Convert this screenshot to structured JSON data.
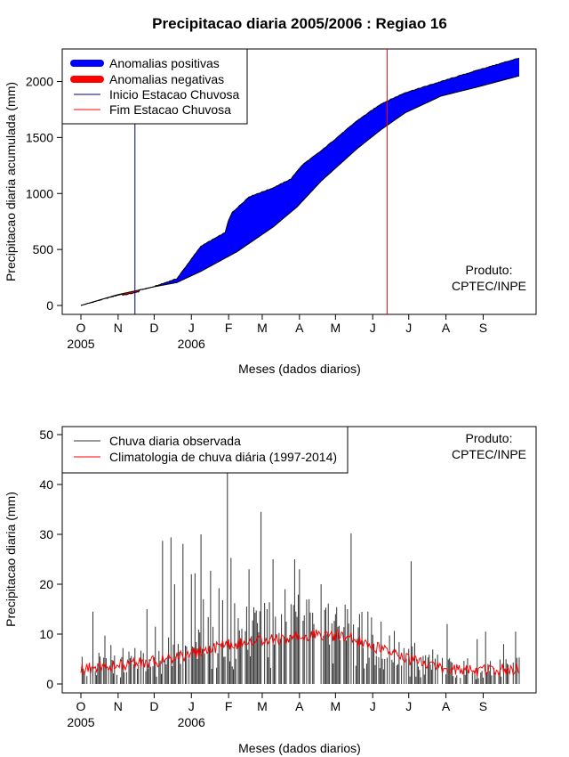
{
  "page": {
    "title": "Precipitacao diaria 2005/2006 : Regiao 16"
  },
  "chart_data": [
    {
      "type": "area",
      "title": "Precipitacao diaria 2005/2006 : Regiao 16",
      "xlabel": "Meses (dados diarios)",
      "ylabel": "Precipitacao diaria acumulada (mm)",
      "ylim": [
        0,
        2250
      ],
      "yticks": [
        0,
        500,
        1000,
        1500,
        2000
      ],
      "month_ticks": [
        "O",
        "N",
        "D",
        "J",
        "F",
        "M",
        "A",
        "M",
        "J",
        "J",
        "A",
        "S"
      ],
      "year_labels": [
        "2005",
        "2006"
      ],
      "x_days_range": [
        0,
        365
      ],
      "climatology_cumulative": {
        "x_day": [
          0,
          30,
          60,
          80,
          100,
          130,
          160,
          180,
          200,
          230,
          250,
          270,
          300,
          330,
          365
        ],
        "y_mm": [
          0,
          95,
          165,
          205,
          305,
          480,
          700,
          880,
          1110,
          1400,
          1570,
          1720,
          1870,
          1950,
          2050
        ]
      },
      "observed_cumulative": {
        "x_day": [
          0,
          30,
          60,
          80,
          100,
          110,
          120,
          123,
          126,
          130,
          140,
          160,
          175,
          180,
          185,
          200,
          230,
          250,
          270,
          300,
          330,
          365
        ],
        "y_mm": [
          0,
          90,
          165,
          240,
          530,
          590,
          650,
          760,
          830,
          870,
          970,
          1050,
          1130,
          1200,
          1260,
          1380,
          1650,
          1800,
          1900,
          2000,
          2100,
          2210
        ]
      },
      "vlines": {
        "inicio_day": 45,
        "fim_day": 255
      },
      "legend": {
        "position": "top-left",
        "entries": [
          "Anomalias positivas",
          "Anomalias negativas",
          "Inicio Estacao Chuvosa",
          "Fim Estacao Chuvosa"
        ]
      },
      "annotation": [
        "Produto:",
        "CPTEC/INPE"
      ],
      "colors": {
        "positive": "#0000ff",
        "negative": "#ff0000",
        "inicio": "#00008b",
        "fim": "#ff0000",
        "line": "#000000"
      }
    },
    {
      "type": "bar",
      "xlabel": "Meses (dados diarios)",
      "ylabel": "Precipitacao diaria (mm)",
      "ylim": [
        0,
        50
      ],
      "yticks": [
        0,
        10,
        20,
        30,
        40,
        50
      ],
      "month_ticks": [
        "O",
        "N",
        "D",
        "J",
        "F",
        "M",
        "A",
        "M",
        "J",
        "J",
        "A",
        "S"
      ],
      "year_labels": [
        "2005",
        "2006"
      ],
      "x_days_range": [
        0,
        365
      ],
      "observed_daily_peaks": {
        "x_day": [
          10,
          20,
          25,
          35,
          40,
          55,
          62,
          68,
          75,
          78,
          85,
          92,
          95,
          100,
          102,
          108,
          115,
          118,
          122,
          125,
          128,
          140,
          150,
          155,
          160,
          170,
          175,
          178,
          182,
          190,
          200,
          212,
          225,
          250,
          275,
          305,
          330,
          337,
          352,
          362
        ],
        "y_mm": [
          14.5,
          9.7,
          7.8,
          7.2,
          6.5,
          15.0,
          11.5,
          28.7,
          29.4,
          20.0,
          28.1,
          22.0,
          22.2,
          30.0,
          17.0,
          22.7,
          19.2,
          16.8,
          43.0,
          25.3,
          16.2,
          23.0,
          34.5,
          15.0,
          25.0,
          19.0,
          16.0,
          25.0,
          23.0,
          17.0,
          20.0,
          14.0,
          30.2,
          12.5,
          24.6,
          12.0,
          9.0,
          10.5,
          8.0,
          10.5
        ]
      },
      "climatology_daily": {
        "x_day": [
          0,
          15,
          30,
          45,
          60,
          75,
          90,
          105,
          120,
          135,
          150,
          165,
          180,
          195,
          210,
          225,
          240,
          255,
          270,
          285,
          300,
          315,
          330,
          345,
          360,
          365
        ],
        "y_mm": [
          3.0,
          3.3,
          3.6,
          4.0,
          4.5,
          5.0,
          6.0,
          7.0,
          7.8,
          8.2,
          8.8,
          9.0,
          9.5,
          9.8,
          9.8,
          9.2,
          7.8,
          6.5,
          5.2,
          4.2,
          3.2,
          2.8,
          2.6,
          2.8,
          3.0,
          3.0
        ]
      },
      "legend": {
        "position": "top-left",
        "entries": [
          "Chuva diaria observada",
          "Climatologia de chuva diária (1997-2014)"
        ]
      },
      "annotation": [
        "Produto:",
        "CPTEC/INPE"
      ],
      "colors": {
        "observed": "#333333",
        "climatology": "#ff0000"
      }
    }
  ]
}
